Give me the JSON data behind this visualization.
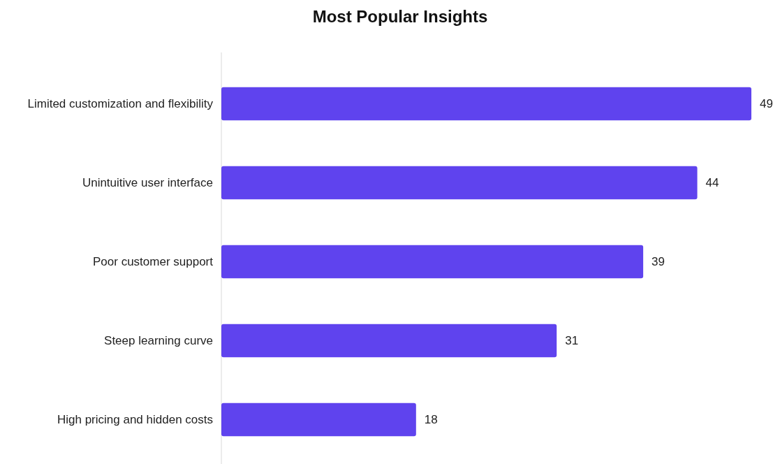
{
  "chart_data": {
    "type": "bar",
    "orientation": "horizontal",
    "title": "Most Popular Insights",
    "categories": [
      "Limited customization and flexibility",
      "Unintuitive user interface",
      "Poor customer support",
      "Steep learning curve",
      "High pricing and hidden costs"
    ],
    "values": [
      49,
      44,
      39,
      31,
      18
    ],
    "color": "#5f43ee",
    "data_labels": true
  }
}
